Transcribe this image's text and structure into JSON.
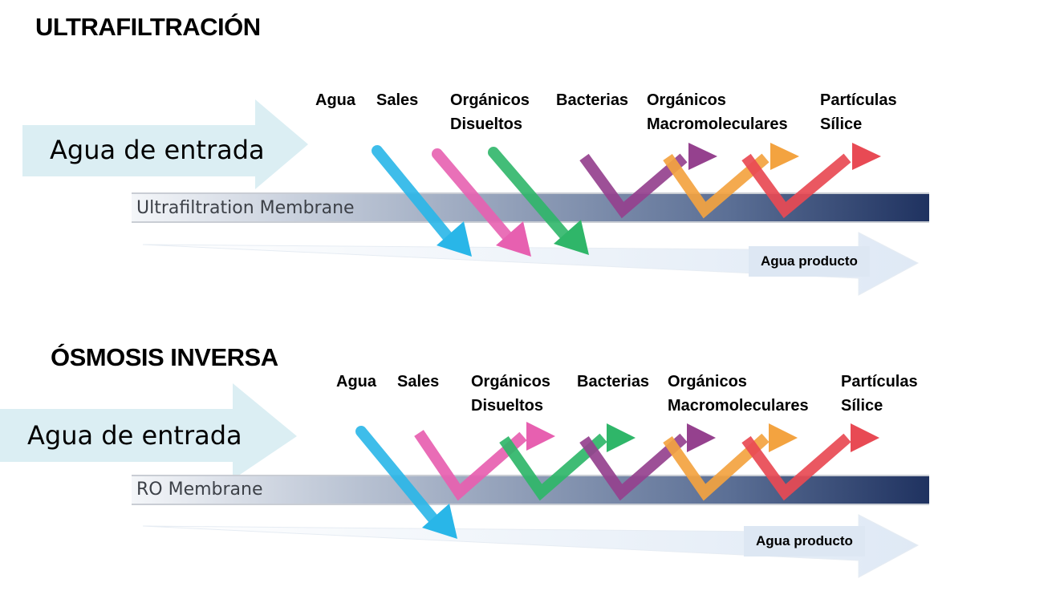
{
  "sections": {
    "uf": {
      "title": "ULTRAFILTRACIÓN",
      "inlet_label": "Agua de entrada",
      "membrane_label": "Ultrafiltration Membrane",
      "product_label": "Agua producto",
      "contaminants": [
        {
          "line1": "Agua",
          "line2": "",
          "color": "#29b6e8",
          "passes": true
        },
        {
          "line1": "Sales",
          "line2": "",
          "color": "#e760b0",
          "passes": true
        },
        {
          "line1": "Orgánicos",
          "line2": "Disueltos",
          "color": "#2fb669",
          "passes": true
        },
        {
          "line1": "Bacterias",
          "line2": "",
          "color": "#95418e",
          "passes": false
        },
        {
          "line1": "Orgánicos",
          "line2": "Macromoleculares",
          "color": "#f3a340",
          "passes": false
        },
        {
          "line1": "Partículas",
          "line2": "Sílice",
          "color": "#e84a54",
          "passes": false
        }
      ]
    },
    "ro": {
      "title": "ÓSMOSIS INVERSA",
      "inlet_label": "Agua de entrada",
      "membrane_label": "RO Membrane",
      "product_label": "Agua producto",
      "contaminants": [
        {
          "line1": "Agua",
          "line2": "",
          "color": "#29b6e8",
          "passes": true
        },
        {
          "line1": "Sales",
          "line2": "",
          "color": "#e760b0",
          "passes": false
        },
        {
          "line1": "Orgánicos",
          "line2": "Disueltos",
          "color": "#2fb669",
          "passes": false
        },
        {
          "line1": "Bacterias",
          "line2": "",
          "color": "#95418e",
          "passes": false
        },
        {
          "line1": "Orgánicos",
          "line2": "Macromoleculares",
          "color": "#f3a340",
          "passes": false
        },
        {
          "line1": "Partículas",
          "line2": "Sílice",
          "color": "#e84a54",
          "passes": false
        }
      ]
    }
  },
  "colors": {
    "inlet_arrow": "#dbeef3",
    "membrane_dark": "#1f3260",
    "product_box": "#dde7f3"
  }
}
